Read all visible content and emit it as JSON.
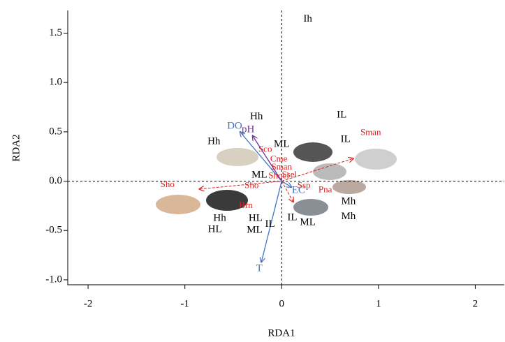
{
  "chart_data": {
    "type": "biplot",
    "xlabel": "RDA1",
    "ylabel": "RDA2",
    "xlim": [
      -2.21,
      2.3
    ],
    "ylim": [
      -1.05,
      1.73
    ],
    "xticks": [
      -2,
      -1,
      0,
      1,
      2
    ],
    "yticks": [
      {
        "value": 1.5,
        "label": "1.5"
      },
      {
        "value": 1.0,
        "label": "1.0"
      },
      {
        "value": 0.5,
        "label": "0.5"
      },
      {
        "value": 0.0,
        "label": "0.0"
      },
      {
        "value": -0.5,
        "label": "-0.5"
      },
      {
        "value": -1.0,
        "label": "-1.0"
      }
    ],
    "sites": {
      "color": "#000000",
      "labels": [
        "Ih",
        "Hh",
        "IL",
        "Hh",
        "ML",
        "IL",
        "ML",
        "Hh",
        "HL",
        "HL",
        "ML",
        "IL",
        "IL",
        "ML",
        "Mh",
        "Mh"
      ],
      "x": [
        0.27,
        -0.26,
        0.62,
        -0.7,
        0.0,
        0.66,
        -0.23,
        -0.64,
        -0.69,
        -0.27,
        -0.28,
        -0.12,
        0.11,
        0.27,
        0.69,
        0.69
      ],
      "y": [
        1.64,
        0.65,
        0.67,
        0.4,
        0.37,
        0.42,
        0.06,
        -0.38,
        -0.49,
        -0.38,
        -0.5,
        -0.44,
        -0.37,
        -0.42,
        -0.21,
        -0.36
      ]
    },
    "species": {
      "color": "#e02020",
      "labels": [
        "Sman",
        "Sco",
        "Cme",
        "Sman",
        "Ssel",
        "Shoel",
        "Sho",
        "Sho",
        "Brn",
        "Ssp",
        "Pna"
      ],
      "x": [
        0.92,
        -0.17,
        -0.03,
        0.0,
        0.08,
        -0.03,
        -0.31,
        -1.18,
        -0.37,
        0.23,
        0.45
      ],
      "y": [
        0.49,
        0.32,
        0.22,
        0.14,
        0.06,
        0.05,
        -0.05,
        -0.04,
        -0.25,
        -0.05,
        -0.09
      ]
    },
    "species_vectors": {
      "x": [
        0.74,
        -0.85,
        0.12
      ],
      "y": [
        0.23,
        -0.08,
        -0.21
      ]
    },
    "environment": {
      "labels": [
        "DO",
        "pH",
        "T",
        "EC"
      ],
      "colors": [
        "#4472c4",
        "#7030a0",
        "#4472c4",
        "#4472c4"
      ],
      "x": [
        -0.43,
        -0.3,
        -0.21,
        0.1
      ],
      "y": [
        0.5,
        0.46,
        -0.82,
        -0.06
      ]
    }
  }
}
